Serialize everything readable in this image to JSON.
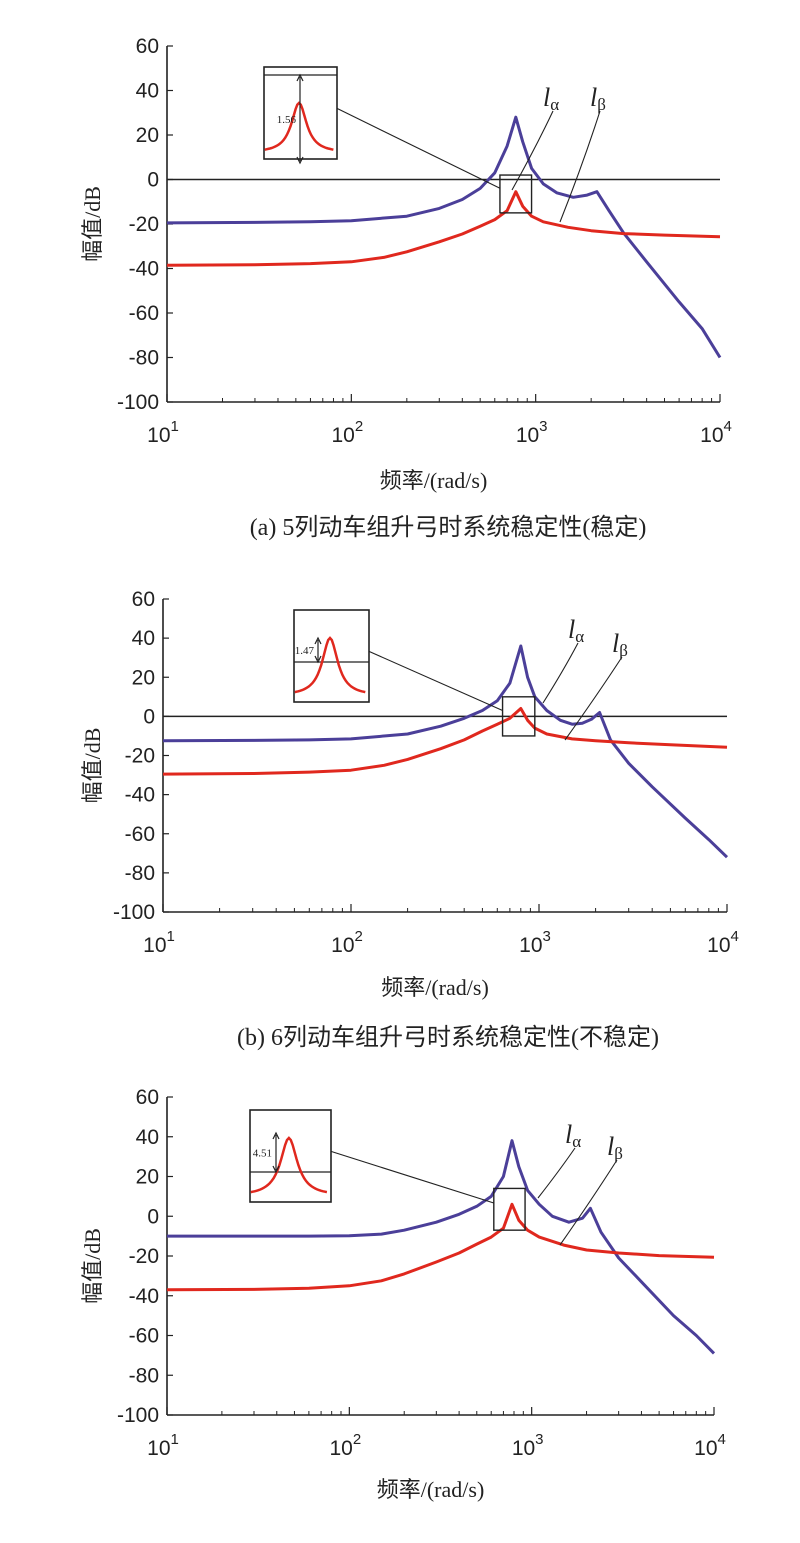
{
  "colors": {
    "l_alpha": "#4b3f99",
    "l_beta": "#e0281e",
    "axis": "#222222"
  },
  "chart_data": [
    {
      "type": "line",
      "caption": "(a) 5列动车组升弓时系统稳定性(稳定)",
      "xlabel": "频率/(rad/s)",
      "ylabel": "幅值/dB",
      "xscale": "log",
      "xlim": [
        10,
        10000
      ],
      "ylim": [
        -100,
        60
      ],
      "yticks": [
        "60",
        "40",
        "20",
        "0",
        "-20",
        "-40",
        "-60",
        "-80",
        "-100"
      ],
      "xticks": [
        {
          "base": "10",
          "exp": "1"
        },
        {
          "base": "10",
          "exp": "2"
        },
        {
          "base": "10",
          "exp": "3"
        },
        {
          "base": "10",
          "exp": "4"
        }
      ],
      "series": [
        {
          "name": "lα",
          "color": "#4b3f99",
          "x": [
            10,
            30,
            60,
            100,
            200,
            300,
            400,
            500,
            600,
            700,
            780,
            850,
            950,
            1100,
            1300,
            1600,
            1900,
            2150,
            2500,
            3000,
            4000,
            6000,
            8000,
            10000
          ],
          "y": [
            -19.5,
            -19.3,
            -19,
            -18.5,
            -16.5,
            -13,
            -9,
            -4,
            3,
            15,
            28,
            17,
            5,
            -2,
            -6,
            -8,
            -7,
            -5.5,
            -14,
            -24,
            -37,
            -55,
            -67,
            -80
          ]
        },
        {
          "name": "lβ",
          "color": "#e0281e",
          "x": [
            10,
            30,
            60,
            100,
            150,
            200,
            300,
            400,
            500,
            600,
            700,
            780,
            850,
            950,
            1100,
            1500,
            2000,
            3000,
            5000,
            10000
          ],
          "y": [
            -38.5,
            -38.3,
            -37.8,
            -37,
            -35,
            -32.5,
            -28,
            -24.5,
            -21,
            -18,
            -14,
            -5.5,
            -12,
            -16.5,
            -19,
            -21.5,
            -23,
            -24.3,
            -25,
            -25.7
          ]
        }
      ],
      "inset": {
        "value": "1.56",
        "x_range": [
          640,
          950
        ],
        "y_range": [
          -15,
          2
        ]
      },
      "annotations": [
        {
          "text": "l",
          "sub": "α"
        },
        {
          "text": "l",
          "sub": "β"
        }
      ],
      "horizontal_line": 0
    },
    {
      "type": "line",
      "caption": "(b) 6列动车组升弓时系统稳定性(不稳定)",
      "xlabel": "频率/(rad/s)",
      "ylabel": "幅值/dB",
      "xscale": "log",
      "xlim": [
        10,
        10000
      ],
      "ylim": [
        -100,
        60
      ],
      "yticks": [
        "60",
        "40",
        "20",
        "0",
        "-20",
        "-40",
        "-60",
        "-80",
        "-100"
      ],
      "xticks": [
        {
          "base": "10",
          "exp": "1"
        },
        {
          "base": "10",
          "exp": "2"
        },
        {
          "base": "10",
          "exp": "3"
        },
        {
          "base": "10",
          "exp": "4"
        }
      ],
      "series": [
        {
          "name": "lα",
          "color": "#4b3f99",
          "x": [
            10,
            30,
            60,
            100,
            200,
            300,
            400,
            500,
            600,
            700,
            800,
            870,
            950,
            1100,
            1300,
            1500,
            1700,
            1900,
            2100,
            2400,
            3000,
            4000,
            6000,
            8000,
            10000
          ],
          "y": [
            -12.5,
            -12.3,
            -12,
            -11.5,
            -9,
            -5,
            -1,
            3,
            8,
            17,
            36,
            20,
            10,
            3,
            -2,
            -4,
            -3.5,
            -1.5,
            2,
            -12,
            -24,
            -36,
            -52,
            -63,
            -72
          ]
        },
        {
          "name": "lβ",
          "color": "#e0281e",
          "x": [
            10,
            30,
            60,
            100,
            150,
            200,
            300,
            400,
            500,
            600,
            700,
            800,
            870,
            950,
            1100,
            1500,
            2000,
            3000,
            5000,
            10000
          ],
          "y": [
            -29.5,
            -29.2,
            -28.5,
            -27.5,
            -25,
            -22,
            -16.5,
            -12,
            -7.5,
            -4,
            -1,
            4,
            -2,
            -6,
            -9,
            -11.5,
            -12.5,
            -13.5,
            -14.5,
            -15.8
          ]
        }
      ],
      "inset": {
        "value": "1.47",
        "x_range": [
          640,
          950
        ],
        "y_range": [
          -10,
          10
        ]
      },
      "annotations": [
        {
          "text": "l",
          "sub": "α"
        },
        {
          "text": "l",
          "sub": "β"
        }
      ],
      "horizontal_line": 0
    },
    {
      "type": "line",
      "caption": "",
      "xlabel": "频率/(rad/s)",
      "ylabel": "幅值/dB",
      "xscale": "log",
      "xlim": [
        10,
        10000
      ],
      "ylim": [
        -100,
        60
      ],
      "yticks": [
        "60",
        "40",
        "20",
        "0",
        "-20",
        "-40",
        "-60",
        "-80",
        "-100"
      ],
      "xticks": [
        {
          "base": "10",
          "exp": "1"
        },
        {
          "base": "10",
          "exp": "2"
        },
        {
          "base": "10",
          "exp": "3"
        },
        {
          "base": "10",
          "exp": "4"
        }
      ],
      "series": [
        {
          "name": "lα",
          "color": "#4b3f99",
          "x": [
            10,
            30,
            60,
            100,
            150,
            200,
            300,
            400,
            500,
            600,
            700,
            780,
            850,
            950,
            1100,
            1300,
            1600,
            1900,
            2100,
            2400,
            3000,
            4000,
            6000,
            8000,
            10000
          ],
          "y": [
            -10,
            -10,
            -10,
            -9.8,
            -9,
            -7,
            -3,
            1,
            5,
            10,
            20,
            38,
            25,
            13,
            6,
            0,
            -3,
            -1,
            4,
            -8,
            -21,
            -33,
            -50,
            -60,
            -69
          ]
        },
        {
          "name": "lβ",
          "color": "#e0281e",
          "x": [
            10,
            30,
            60,
            100,
            150,
            200,
            300,
            400,
            500,
            600,
            700,
            780,
            850,
            950,
            1100,
            1500,
            2000,
            3000,
            5000,
            10000
          ],
          "y": [
            -37,
            -36.8,
            -36.2,
            -35,
            -32.5,
            -29,
            -23,
            -18.5,
            -14,
            -10.5,
            -6,
            6,
            -2,
            -7,
            -10.5,
            -14.5,
            -17,
            -18.5,
            -19.8,
            -20.6
          ]
        }
      ],
      "inset": {
        "value": "4.51",
        "x_range": [
          620,
          920
        ],
        "y_range": [
          -7,
          14
        ]
      },
      "annotations": [
        {
          "text": "l",
          "sub": "α"
        },
        {
          "text": "l",
          "sub": "β"
        }
      ],
      "horizontal_line": null
    }
  ]
}
